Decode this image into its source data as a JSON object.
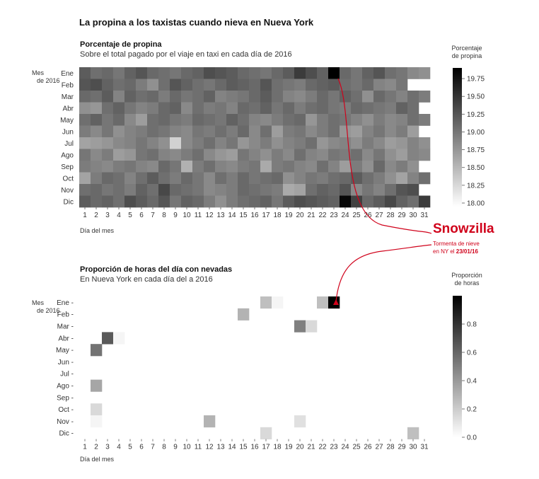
{
  "title": "La propina a los taxistas cuando nieva en Nueva York",
  "colors": {
    "annotation": "#d0021b",
    "low": "#ffffff",
    "high": "#000000"
  },
  "chart_data": [
    {
      "type": "heatmap",
      "title": "Porcentaje de propina",
      "subtitle": "Sobre el total pagado por el viaje en taxi en cada día de 2016",
      "ylabel": "Mes de 2016",
      "xlabel": "Día del  mes",
      "x": [
        1,
        2,
        3,
        4,
        5,
        6,
        7,
        8,
        9,
        10,
        11,
        12,
        13,
        14,
        15,
        16,
        17,
        18,
        19,
        20,
        21,
        22,
        23,
        24,
        25,
        26,
        27,
        28,
        29,
        30,
        31
      ],
      "y": [
        "Ene",
        "Feb",
        "Mar",
        "Abr",
        "May",
        "Jun",
        "Jul",
        "Ago",
        "Sep",
        "Oct",
        "Nov",
        "Dic"
      ],
      "legend_title": "Porcentaje de propina",
      "legend_ticks": [
        "19.75",
        "19.50",
        "19.25",
        "19.00",
        "18.75",
        "18.50",
        "18.25",
        "18.00"
      ],
      "scale": [
        17.95,
        19.9
      ],
      "values": [
        [
          19.2,
          19.05,
          19.1,
          19.0,
          19.15,
          19.25,
          19.1,
          19.05,
          19.0,
          19.1,
          19.15,
          19.3,
          19.25,
          19.2,
          19.1,
          19.05,
          19.0,
          19.1,
          19.2,
          19.45,
          19.3,
          19.15,
          19.9,
          19.1,
          19.0,
          19.15,
          19.25,
          19.05,
          19.0,
          18.85,
          18.8
        ],
        [
          19.25,
          19.3,
          19.15,
          19.05,
          19.1,
          18.95,
          18.8,
          19.05,
          19.25,
          19.15,
          19.05,
          19.0,
          19.1,
          19.2,
          19.15,
          19.1,
          19.25,
          19.05,
          19.0,
          18.95,
          19.1,
          19.15,
          19.2,
          19.05,
          19.0,
          19.1,
          18.9,
          18.85,
          19.0,
          null,
          null
        ],
        [
          19.1,
          19.05,
          19.2,
          18.9,
          19.15,
          19.05,
          19.1,
          18.95,
          19.1,
          19.0,
          19.05,
          19.15,
          18.9,
          18.95,
          19.0,
          19.1,
          19.2,
          19.05,
          18.9,
          18.85,
          18.95,
          19.1,
          19.0,
          19.15,
          19.05,
          18.8,
          19.1,
          19.0,
          18.9,
          19.05,
          18.95
        ],
        [
          18.8,
          18.75,
          19.05,
          19.15,
          19.0,
          18.9,
          18.95,
          19.1,
          19.15,
          18.85,
          19.05,
          18.95,
          19.0,
          18.9,
          19.1,
          19.05,
          19.15,
          19.0,
          19.1,
          18.95,
          19.05,
          19.1,
          19.0,
          18.95,
          19.1,
          19.05,
          19.0,
          18.95,
          19.15,
          19.05,
          null
        ],
        [
          19.05,
          19.15,
          19.0,
          19.1,
          18.85,
          18.7,
          19.05,
          19.1,
          19.0,
          18.95,
          19.1,
          19.05,
          19.0,
          19.15,
          19.05,
          18.9,
          18.85,
          18.95,
          19.05,
          19.1,
          18.75,
          18.95,
          19.05,
          19.0,
          18.9,
          18.8,
          18.95,
          18.85,
          18.9,
          19.05,
          18.95
        ],
        [
          18.95,
          18.85,
          19.0,
          18.8,
          18.9,
          18.95,
          19.05,
          19.0,
          18.9,
          18.85,
          19.0,
          18.95,
          19.05,
          18.95,
          19.1,
          18.85,
          19.05,
          18.7,
          18.95,
          19.0,
          18.85,
          18.95,
          19.05,
          18.75,
          18.7,
          18.9,
          19.0,
          18.85,
          18.95,
          18.7,
          null
        ],
        [
          18.65,
          18.7,
          18.75,
          18.85,
          18.9,
          19.0,
          18.9,
          18.8,
          18.3,
          18.85,
          18.95,
          19.05,
          18.9,
          19.0,
          18.75,
          18.85,
          18.95,
          18.8,
          18.9,
          18.95,
          19.05,
          18.75,
          18.85,
          18.9,
          18.8,
          18.95,
          18.85,
          18.7,
          18.75,
          18.9,
          18.8
        ],
        [
          19.0,
          18.85,
          18.95,
          18.7,
          18.75,
          19.0,
          19.05,
          18.9,
          18.85,
          18.95,
          19.05,
          18.85,
          18.75,
          18.7,
          19.0,
          18.9,
          18.8,
          18.95,
          18.85,
          19.05,
          18.9,
          18.85,
          19.0,
          18.95,
          19.05,
          18.85,
          19.0,
          18.8,
          18.7,
          18.9,
          18.85
        ],
        [
          18.95,
          18.9,
          18.85,
          18.95,
          19.0,
          18.9,
          18.85,
          19.1,
          19.0,
          18.55,
          18.95,
          19.05,
          18.9,
          18.85,
          18.95,
          19.0,
          18.6,
          18.95,
          19.0,
          18.9,
          18.85,
          19.05,
          18.9,
          18.7,
          18.95,
          18.8,
          19.1,
          18.85,
          18.95,
          18.8,
          null
        ],
        [
          18.65,
          18.95,
          19.1,
          19.05,
          18.9,
          19.05,
          19.2,
          19.05,
          18.95,
          19.1,
          19.0,
          18.85,
          19.05,
          18.95,
          19.1,
          19.0,
          19.05,
          19.1,
          18.8,
          18.9,
          19.0,
          18.95,
          19.05,
          19.1,
          19.2,
          19.05,
          18.95,
          18.8,
          18.65,
          18.9,
          19.05
        ],
        [
          19.05,
          19.1,
          19.0,
          19.05,
          18.95,
          19.15,
          19.05,
          19.35,
          19.1,
          19.05,
          19.0,
          18.85,
          18.9,
          18.95,
          19.1,
          19.05,
          19.0,
          18.95,
          18.6,
          18.65,
          19.05,
          19.15,
          19.1,
          19.25,
          18.85,
          19.0,
          18.9,
          19.05,
          19.25,
          19.3,
          null
        ],
        [
          19.2,
          19.1,
          19.15,
          19.05,
          19.3,
          19.2,
          19.1,
          19.25,
          19.0,
          19.15,
          19.1,
          18.95,
          18.8,
          18.95,
          19.05,
          19.1,
          19.15,
          19.0,
          19.2,
          19.3,
          19.25,
          19.2,
          19.15,
          19.85,
          19.4,
          19.1,
          19.2,
          19.35,
          19.15,
          19.05,
          19.45
        ]
      ]
    },
    {
      "type": "heatmap",
      "title": "Proporción de horas del día con nevadas",
      "subtitle": "En Nueva York en  cada día del a 2016",
      "ylabel": "Mes de 2016",
      "xlabel": "Día del  mes",
      "x": [
        1,
        2,
        3,
        4,
        5,
        6,
        7,
        8,
        9,
        10,
        11,
        12,
        13,
        14,
        15,
        16,
        17,
        18,
        19,
        20,
        21,
        22,
        23,
        24,
        25,
        26,
        27,
        28,
        29,
        30,
        31
      ],
      "y": [
        "Ene",
        "Feb",
        "Mar",
        "Abr",
        "May",
        "Jun",
        "Jul",
        "Ago",
        "Sep",
        "Oct",
        "Nov",
        "Dic"
      ],
      "legend_title": "Proporción de horas",
      "legend_ticks": [
        "0.8",
        "0.6",
        "0.4",
        "0.2",
        "0.0"
      ],
      "scale": [
        0,
        1.0
      ],
      "cells": [
        {
          "month": "Ene",
          "day": 17,
          "value": 0.25
        },
        {
          "month": "Ene",
          "day": 18,
          "value": 0.04
        },
        {
          "month": "Ene",
          "day": 22,
          "value": 0.25
        },
        {
          "month": "Ene",
          "day": 23,
          "value": 1.0
        },
        {
          "month": "Feb",
          "day": 15,
          "value": 0.3
        },
        {
          "month": "Mar",
          "day": 20,
          "value": 0.5
        },
        {
          "month": "Mar",
          "day": 21,
          "value": 0.15
        },
        {
          "month": "Abr",
          "day": 3,
          "value": 0.65
        },
        {
          "month": "Abr",
          "day": 4,
          "value": 0.04
        },
        {
          "month": "May",
          "day": 2,
          "value": 0.55
        },
        {
          "month": "Ago",
          "day": 2,
          "value": 0.35
        },
        {
          "month": "Oct",
          "day": 2,
          "value": 0.15
        },
        {
          "month": "Nov",
          "day": 2,
          "value": 0.04
        },
        {
          "month": "Nov",
          "day": 12,
          "value": 0.3
        },
        {
          "month": "Nov",
          "day": 20,
          "value": 0.12
        },
        {
          "month": "Dic",
          "day": 17,
          "value": 0.15
        },
        {
          "month": "Dic",
          "day": 30,
          "value": 0.25
        }
      ]
    }
  ],
  "annotation": {
    "title": "Snowzilla",
    "line1": "Tormenta de nieve",
    "line2_prefix": "en  NY el",
    "line2_date": "23/01/16"
  }
}
